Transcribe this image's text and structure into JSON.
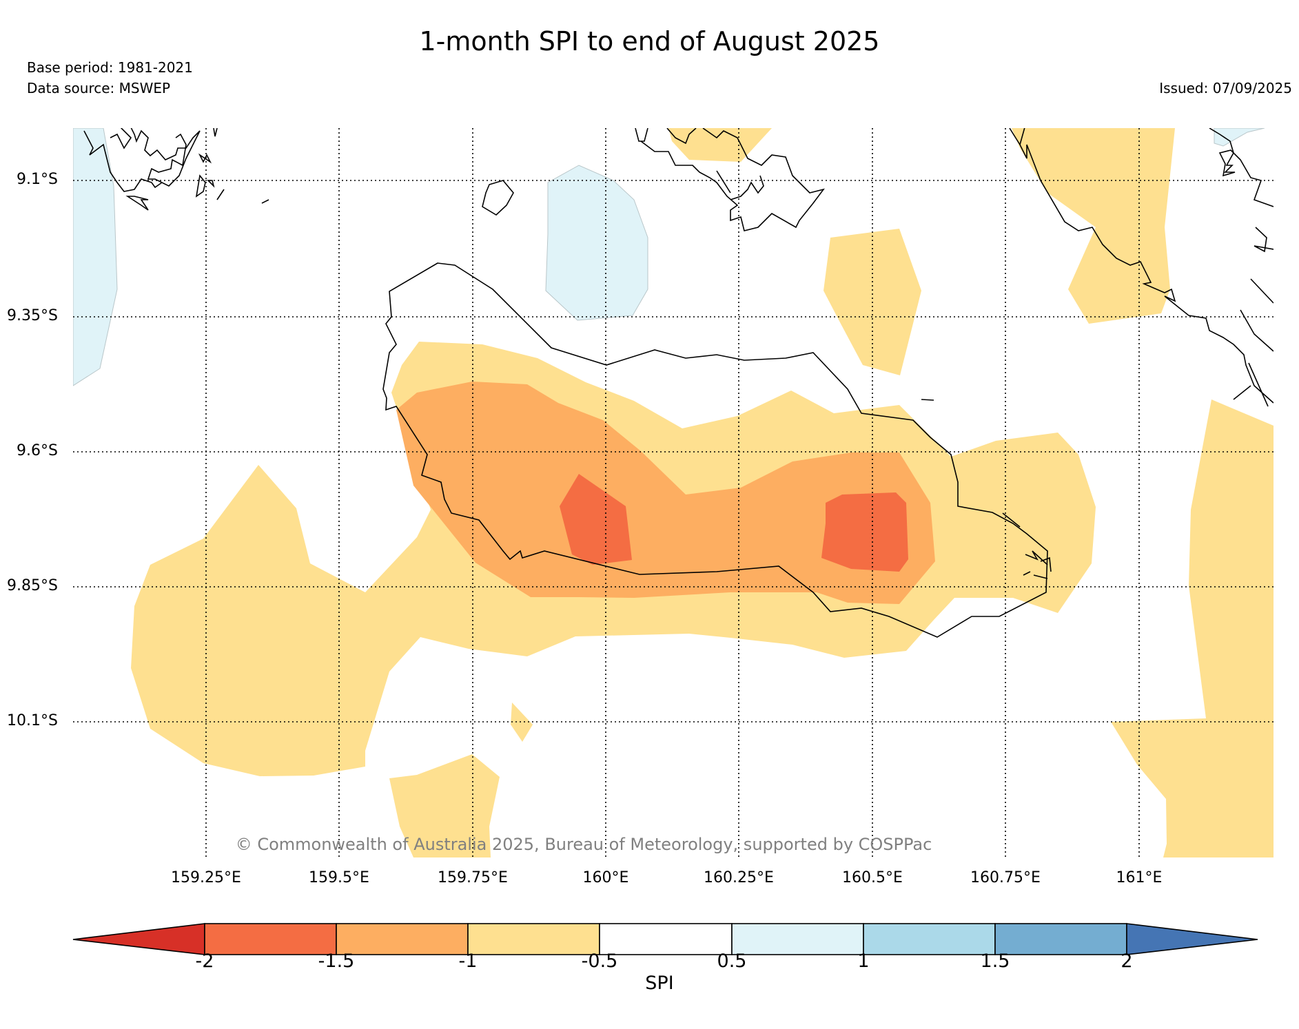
{
  "title": "1-month SPI to end of August 2025",
  "base_period": "Base period: 1981-2021",
  "data_source": "Data source: MSWEP",
  "issued": "Issued: 07/09/2025",
  "copyright": "© Commonwealth of Australia 2025, Bureau of Meteorology, supported by COSPPac",
  "lat_labels": [
    "9.1°S",
    "9.35°S",
    "9.6°S",
    "9.85°S",
    "10.1°S"
  ],
  "lon_labels": [
    "159.25°E",
    "159.5°E",
    "159.75°E",
    "160°E",
    "160.25°E",
    "160.5°E",
    "160.75°E",
    "161°E"
  ],
  "colorbar": {
    "title": "SPI",
    "ticks": [
      "-2",
      "-1.5",
      "-1",
      "-0.5",
      "0.5",
      "1",
      "1.5",
      "2"
    ],
    "colors": [
      "#d73027",
      "#f46d43",
      "#fdae61",
      "#fee090",
      "#ffffff",
      "#e0f3f8",
      "#abd9e9",
      "#74add1",
      "#4575b4"
    ]
  }
}
